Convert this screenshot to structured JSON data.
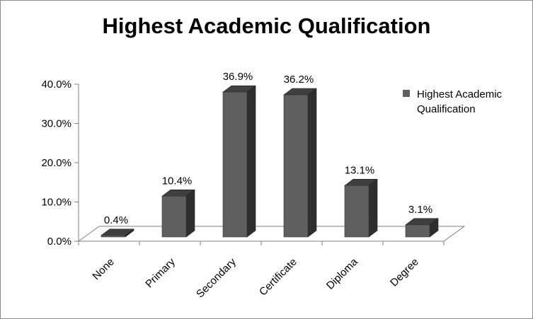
{
  "chart_data": {
    "type": "bar",
    "title": "Highest Academic Qualification",
    "categories": [
      "None",
      "Primary",
      "Secondary",
      "Certificate",
      "Diploma",
      "Degree"
    ],
    "series": [
      {
        "name": "Highest Academic Qualification",
        "values": [
          0.4,
          10.4,
          36.9,
          36.2,
          13.1,
          3.1
        ],
        "labels": [
          "0.4%",
          "10.4%",
          "36.9%",
          "36.2%",
          "13.1%",
          "3.1%"
        ]
      }
    ],
    "yticks": [
      "0.0%",
      "10.0%",
      "20.0%",
      "30.0%",
      "40.0%"
    ],
    "ylim": [
      0,
      40
    ],
    "xlabel": "",
    "ylabel": "",
    "legend": {
      "position": "right",
      "entries": [
        "Highest Academic Qualification"
      ]
    },
    "grid": false,
    "colors": {
      "bar_front": "#5f5f5f",
      "bar_top": "#3f3f3f",
      "bar_side": "#2e2e2e",
      "axis": "#808080"
    }
  }
}
